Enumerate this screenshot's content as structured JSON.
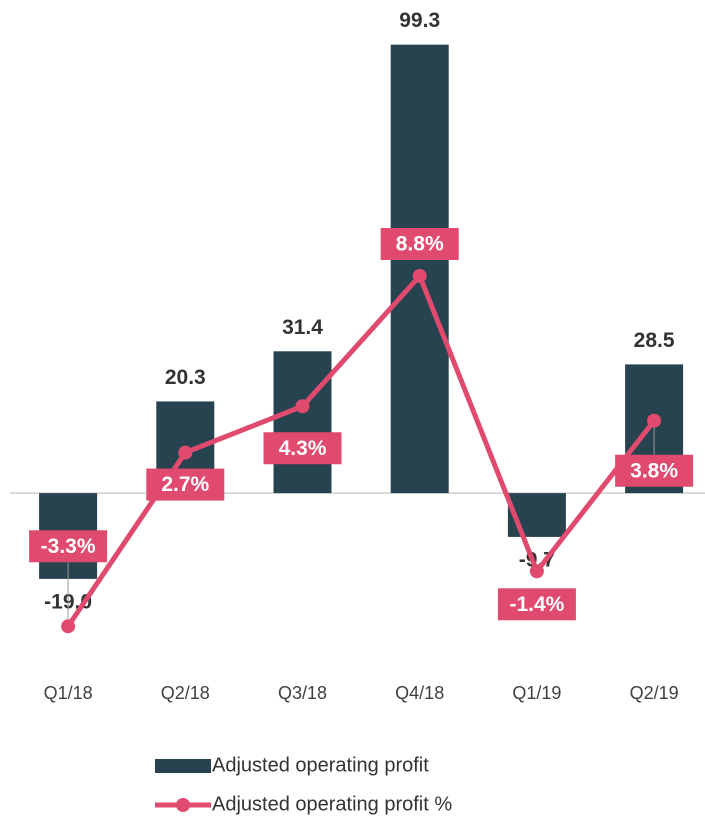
{
  "chart_data": {
    "type": "bar",
    "categories": [
      "Q1/18",
      "Q2/18",
      "Q3/18",
      "Q4/18",
      "Q1/19",
      "Q2/19"
    ],
    "series": [
      {
        "name": "Adjusted operating profit",
        "type": "bar",
        "color": "#27434f",
        "values": [
          -19.0,
          20.3,
          31.4,
          99.3,
          -9.7,
          28.5
        ],
        "value_labels": [
          "-19.0",
          "20.3",
          "31.4",
          "99.3",
          "-9.7",
          "28.5"
        ]
      },
      {
        "name": "Adjusted operating profit %",
        "type": "line",
        "axis": "y2",
        "color": "#df4a6e",
        "values": [
          -3.3,
          2.7,
          4.3,
          8.8,
          -1.4,
          3.8
        ],
        "value_labels": [
          "-3.3%",
          "2.7%",
          "4.3%",
          "8.8%",
          "-1.4%",
          "3.8%"
        ]
      }
    ],
    "ylim": [
      -25,
      100
    ],
    "y2lim": [
      -2.6,
      16.9
    ],
    "legend": "bottom"
  }
}
